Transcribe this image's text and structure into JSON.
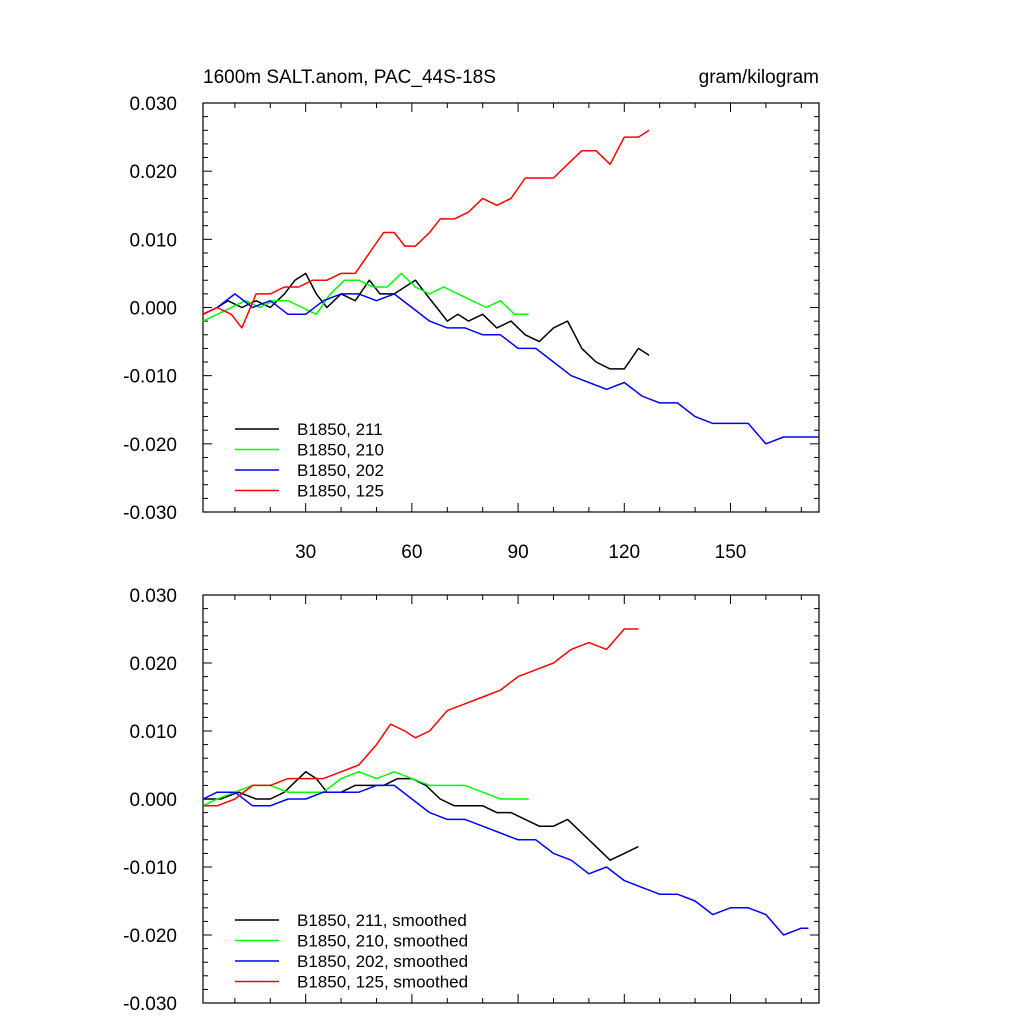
{
  "header": {
    "left_title": "1600m SALT.anom, PAC_44S-18S",
    "right_title": "gram/kilogram"
  },
  "chart_data": [
    {
      "type": "line",
      "title": "1600m SALT.anom, PAC_44S-18S",
      "units": "gram/kilogram",
      "xlim": [
        1,
        175
      ],
      "ylim": [
        -0.03,
        0.03
      ],
      "x_major_ticks": [
        30,
        60,
        90,
        120,
        150
      ],
      "x_tick_labels": [
        "30",
        "60",
        "90",
        "120",
        "150"
      ],
      "y_major_ticks": [
        -0.03,
        -0.02,
        -0.01,
        0.0,
        0.01,
        0.02,
        0.03
      ],
      "y_tick_labels": [
        "-0.030",
        "-0.020",
        "-0.010",
        "0.000",
        "0.010",
        "0.020",
        "0.030"
      ],
      "grid": false,
      "legend_position": "bottom-left",
      "series": [
        {
          "name": "B1850, 211",
          "color": "#000000",
          "x": [
            1,
            5,
            8,
            12,
            16,
            20,
            24,
            27,
            30,
            33,
            36,
            40,
            44,
            48,
            51,
            55,
            58,
            61,
            64,
            67,
            70,
            73,
            76,
            80,
            84,
            88,
            92,
            96,
            100,
            104,
            108,
            112,
            116,
            120,
            124,
            127
          ],
          "y": [
            -0.001,
            0.0,
            0.001,
            0.0,
            0.001,
            0.0,
            0.002,
            0.004,
            0.005,
            0.002,
            0.0,
            0.002,
            0.001,
            0.004,
            0.002,
            0.002,
            0.003,
            0.004,
            0.002,
            0.0,
            -0.002,
            -0.001,
            -0.002,
            -0.001,
            -0.003,
            -0.002,
            -0.004,
            -0.005,
            -0.003,
            -0.002,
            -0.006,
            -0.008,
            -0.009,
            -0.009,
            -0.006,
            -0.007
          ]
        },
        {
          "name": "B1850, 210",
          "color": "#00ff00",
          "x": [
            1,
            5,
            9,
            13,
            17,
            21,
            25,
            29,
            33,
            37,
            41,
            45,
            49,
            53,
            57,
            61,
            65,
            69,
            73,
            77,
            81,
            85,
            89,
            93
          ],
          "y": [
            -0.002,
            -0.001,
            0.0,
            0.001,
            0.0,
            0.001,
            0.001,
            0.0,
            -0.001,
            0.002,
            0.004,
            0.004,
            0.003,
            0.003,
            0.005,
            0.003,
            0.002,
            0.003,
            0.002,
            0.001,
            0.0,
            0.001,
            -0.001,
            -0.001
          ]
        },
        {
          "name": "B1850, 202",
          "color": "#0000ff",
          "x": [
            1,
            5,
            10,
            15,
            20,
            25,
            30,
            35,
            40,
            45,
            50,
            55,
            60,
            65,
            70,
            75,
            80,
            85,
            90,
            95,
            100,
            105,
            110,
            115,
            120,
            125,
            130,
            135,
            140,
            145,
            150,
            155,
            160,
            165,
            170,
            175
          ],
          "y": [
            -0.001,
            0.0,
            0.002,
            0.0,
            0.001,
            -0.001,
            -0.001,
            0.001,
            0.002,
            0.002,
            0.001,
            0.002,
            0.0,
            -0.002,
            -0.003,
            -0.003,
            -0.004,
            -0.004,
            -0.006,
            -0.006,
            -0.008,
            -0.01,
            -0.011,
            -0.012,
            -0.011,
            -0.013,
            -0.014,
            -0.014,
            -0.016,
            -0.017,
            -0.017,
            -0.017,
            -0.02,
            -0.019,
            -0.019,
            -0.019
          ]
        },
        {
          "name": "B1850, 125",
          "color": "#ff0000",
          "x": [
            1,
            5,
            9,
            12,
            16,
            20,
            24,
            28,
            32,
            36,
            40,
            44,
            48,
            52,
            55,
            58,
            61,
            65,
            68,
            72,
            76,
            80,
            84,
            88,
            92,
            96,
            100,
            104,
            108,
            112,
            116,
            120,
            124,
            127
          ],
          "y": [
            -0.001,
            0.0,
            -0.001,
            -0.003,
            0.002,
            0.002,
            0.003,
            0.003,
            0.004,
            0.004,
            0.005,
            0.005,
            0.008,
            0.011,
            0.011,
            0.009,
            0.009,
            0.011,
            0.013,
            0.013,
            0.014,
            0.016,
            0.015,
            0.016,
            0.019,
            0.019,
            0.019,
            0.021,
            0.023,
            0.023,
            0.021,
            0.025,
            0.025,
            0.026
          ]
        }
      ]
    },
    {
      "type": "line",
      "xlim": [
        1,
        175
      ],
      "ylim": [
        -0.03,
        0.03
      ],
      "x_major_ticks": [
        30,
        60,
        90,
        120,
        150
      ],
      "y_major_ticks": [
        -0.03,
        -0.02,
        -0.01,
        0.0,
        0.01,
        0.02,
        0.03
      ],
      "y_tick_labels": [
        "-0.030",
        "-0.020",
        "-0.010",
        "0.000",
        "0.010",
        "0.020",
        "0.030"
      ],
      "grid": false,
      "legend_position": "bottom-left",
      "series": [
        {
          "name": "B1850, 211, smoothed",
          "color": "#000000",
          "x": [
            1,
            6,
            11,
            16,
            20,
            24,
            28,
            30,
            33,
            36,
            40,
            44,
            48,
            52,
            56,
            60,
            64,
            68,
            72,
            76,
            80,
            84,
            88,
            92,
            96,
            100,
            104,
            108,
            112,
            116,
            120,
            124
          ],
          "y": [
            0.0,
            0.0,
            0.001,
            0.0,
            0.0,
            0.001,
            0.003,
            0.004,
            0.003,
            0.001,
            0.001,
            0.002,
            0.002,
            0.002,
            0.003,
            0.003,
            0.002,
            0.0,
            -0.001,
            -0.001,
            -0.001,
            -0.002,
            -0.002,
            -0.003,
            -0.004,
            -0.004,
            -0.003,
            -0.005,
            -0.007,
            -0.009,
            -0.008,
            -0.007
          ]
        },
        {
          "name": "B1850, 210, smoothed",
          "color": "#00ff00",
          "x": [
            1,
            5,
            10,
            15,
            20,
            25,
            30,
            35,
            40,
            45,
            50,
            55,
            60,
            65,
            70,
            75,
            80,
            85,
            90,
            93
          ],
          "y": [
            -0.001,
            0.0,
            0.001,
            0.002,
            0.002,
            0.001,
            0.001,
            0.001,
            0.003,
            0.004,
            0.003,
            0.004,
            0.003,
            0.002,
            0.002,
            0.002,
            0.001,
            0.0,
            0.0,
            0.0
          ]
        },
        {
          "name": "B1850, 202, smoothed",
          "color": "#0000ff",
          "x": [
            1,
            5,
            10,
            15,
            20,
            25,
            30,
            35,
            40,
            45,
            50,
            55,
            60,
            65,
            70,
            75,
            80,
            85,
            90,
            95,
            100,
            105,
            110,
            115,
            120,
            125,
            130,
            135,
            140,
            145,
            150,
            155,
            160,
            165,
            170,
            172
          ],
          "y": [
            0.0,
            0.001,
            0.001,
            -0.001,
            -0.001,
            0.0,
            0.0,
            0.001,
            0.001,
            0.001,
            0.002,
            0.002,
            0.0,
            -0.002,
            -0.003,
            -0.003,
            -0.004,
            -0.005,
            -0.006,
            -0.006,
            -0.008,
            -0.009,
            -0.011,
            -0.01,
            -0.012,
            -0.013,
            -0.014,
            -0.014,
            -0.015,
            -0.017,
            -0.016,
            -0.016,
            -0.017,
            -0.02,
            -0.019,
            -0.019
          ]
        },
        {
          "name": "B1850, 125, smoothed",
          "color": "#ff0000",
          "x": [
            1,
            5,
            10,
            15,
            20,
            25,
            30,
            35,
            40,
            45,
            50,
            54,
            58,
            61,
            65,
            70,
            75,
            80,
            85,
            90,
            95,
            100,
            105,
            110,
            115,
            120,
            124
          ],
          "y": [
            -0.001,
            -0.001,
            0.0,
            0.002,
            0.002,
            0.003,
            0.003,
            0.003,
            0.004,
            0.005,
            0.008,
            0.011,
            0.01,
            0.009,
            0.01,
            0.013,
            0.014,
            0.015,
            0.016,
            0.018,
            0.019,
            0.02,
            0.022,
            0.023,
            0.022,
            0.025,
            0.025
          ]
        }
      ]
    }
  ]
}
